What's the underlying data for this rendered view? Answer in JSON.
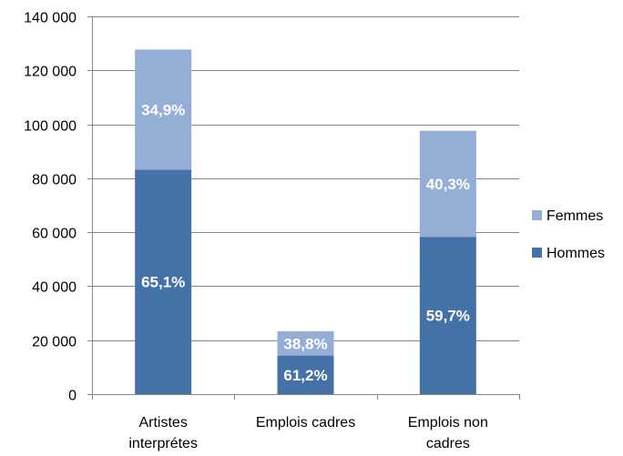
{
  "chart_data": {
    "type": "bar",
    "stacked": true,
    "categories": [
      "Artistes interprétes",
      "Emplois cadres",
      "Emplois non cadres"
    ],
    "category_lines": [
      [
        "Artistes",
        "interprétes"
      ],
      [
        "Emplois cadres"
      ],
      [
        "Emplois non",
        "cadres"
      ]
    ],
    "series": [
      {
        "name": "Hommes",
        "color": "#4472a8",
        "values": [
          83200,
          14300,
          58300
        ],
        "labels": [
          "65,1%",
          "61,2%",
          "59,7%"
        ]
      },
      {
        "name": "Femmes",
        "color": "#95aed5",
        "values": [
          44500,
          9000,
          39300
        ],
        "labels": [
          "34,9%",
          "38,8%",
          "40,3%"
        ]
      }
    ],
    "legend_order": [
      "Femmes",
      "Hommes"
    ],
    "legend_position": "right",
    "ylim": [
      0,
      140000
    ],
    "yticks": [
      0,
      20000,
      40000,
      60000,
      80000,
      100000,
      120000,
      140000
    ],
    "ytick_labels": [
      "0",
      "20 000",
      "40 000",
      "60 000",
      "80 000",
      "100 000",
      "120 000",
      "140 000"
    ],
    "grid": true,
    "grid_color": "#868686",
    "title": "",
    "xlabel": "",
    "ylabel": ""
  }
}
